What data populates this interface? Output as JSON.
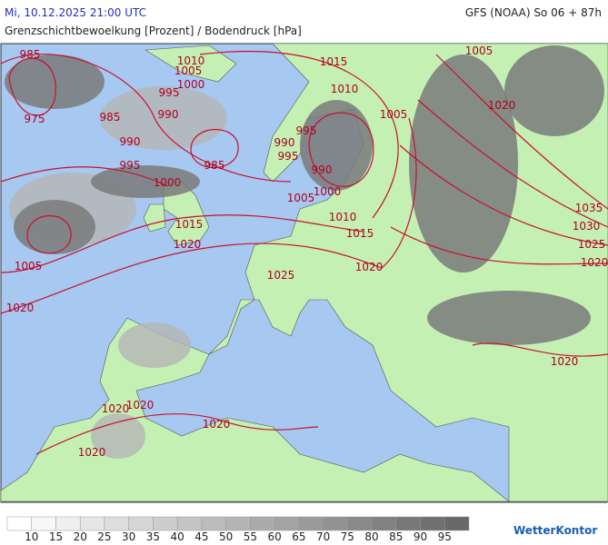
{
  "header": {
    "datetime": "Mi, 10.12.2025 21:00 UTC",
    "model": "GFS (NOAA) So 06 + 87h",
    "title": "Grenzschichtbewoelkung [Prozent] / Bodendruck [hPa]"
  },
  "isobar_labels": [
    985,
    1010,
    1005,
    995,
    1000,
    990,
    985,
    975,
    990,
    995,
    985,
    990,
    995,
    995,
    990,
    1000,
    1000,
    1005,
    1010,
    1015,
    1015,
    1020,
    1020,
    1025,
    1005,
    1020,
    1015,
    1010,
    1005,
    1005,
    1020,
    1035,
    1030,
    1025,
    1020,
    1020,
    1020,
    1020,
    1020,
    1020
  ],
  "legend": {
    "labels": [
      10,
      15,
      20,
      25,
      30,
      35,
      40,
      45,
      50,
      55,
      60,
      65,
      70,
      75,
      80,
      85,
      90,
      95
    ],
    "colors": [
      "#ffffff",
      "#f7f7f7",
      "#efefef",
      "#e6e6e6",
      "#dedede",
      "#d6d6d6",
      "#cdcdcd",
      "#c5c5c5",
      "#bcbcbc",
      "#b4b4b4",
      "#ababab",
      "#a3a3a3",
      "#9a9a9a",
      "#929292",
      "#898989",
      "#818181",
      "#787878",
      "#707070",
      "#686868"
    ]
  },
  "logo": "WetterKontor"
}
